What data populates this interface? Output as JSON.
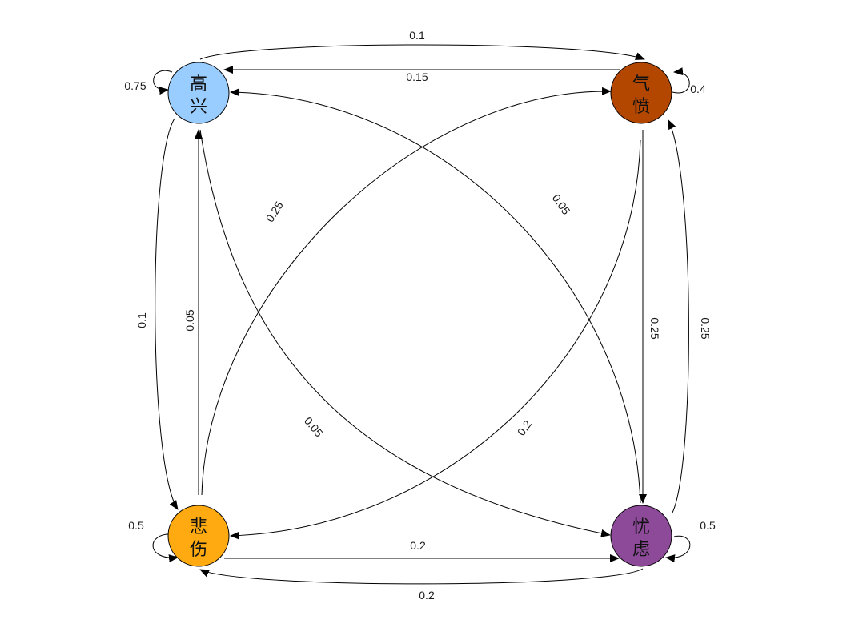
{
  "nodes": [
    {
      "id": "happy",
      "line1": "高",
      "line2": "兴",
      "color": "#99ccff"
    },
    {
      "id": "angry",
      "line1": "气",
      "line2": "愤",
      "color": "#b34700"
    },
    {
      "id": "sad",
      "line1": "悲",
      "line2": "伤",
      "color": "#ffaa11"
    },
    {
      "id": "worried",
      "line1": "忧",
      "line2": "虑",
      "color": "#8c4a99"
    }
  ],
  "edges": {
    "happy_self": "0.75",
    "happy_angry": "0.1",
    "angry_happy": "0.15",
    "angry_self": "0.4",
    "happy_sad": "0.1",
    "sad_happy": "0.05",
    "sad_angry": "0.25",
    "happy_worried": "0.05",
    "worried_happy": "0.05",
    "angry_sad": "0.2",
    "angry_worried": "0.25",
    "worried_angry": "0.25",
    "sad_self": "0.5",
    "worried_self": "0.5",
    "sad_worried": "0.2",
    "worried_sad": "0.2"
  }
}
